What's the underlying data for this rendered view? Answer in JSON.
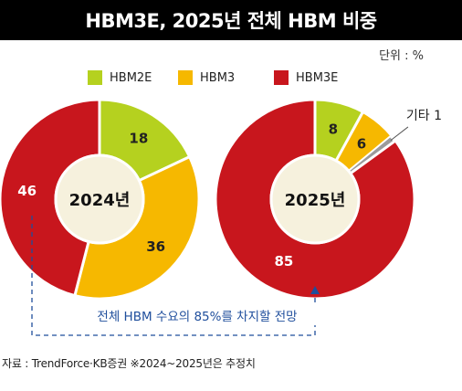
{
  "header": {
    "title": "HBM3E, 2025년 전체 HBM 비중"
  },
  "unit_label": "단위 : %",
  "colors": {
    "HBM2E": "#b5d11f",
    "HBM3": "#f6b800",
    "HBM3E": "#c8161d",
    "other": "#9b9b9b",
    "center": "#f6f1dd",
    "annotation": "#1f4e9c"
  },
  "legend": [
    {
      "label": "HBM2E",
      "color": "#b5d11f"
    },
    {
      "label": "HBM3",
      "color": "#f6b800"
    },
    {
      "label": "HBM3E",
      "color": "#c8161d"
    }
  ],
  "chart_data": [
    {
      "type": "pie",
      "center_label": "2024년",
      "slices": [
        {
          "name": "HBM2E",
          "value": 18,
          "label": "18"
        },
        {
          "name": "HBM3",
          "value": 36,
          "label": "36"
        },
        {
          "name": "HBM3E",
          "value": 46,
          "label": "46"
        }
      ]
    },
    {
      "type": "pie",
      "center_label": "2025년",
      "slices": [
        {
          "name": "HBM2E",
          "value": 8,
          "label": "8"
        },
        {
          "name": "HBM3",
          "value": 6,
          "label": "6"
        },
        {
          "name": "기타",
          "value": 1,
          "label": "기타 1"
        },
        {
          "name": "HBM3E",
          "value": 85,
          "label": "85"
        }
      ]
    }
  ],
  "annotation": "전체 HBM 수요의 85%를 차지할 전망",
  "source": "자료 : TrendForce·KB증권 ※2024~2025년은 추정치"
}
